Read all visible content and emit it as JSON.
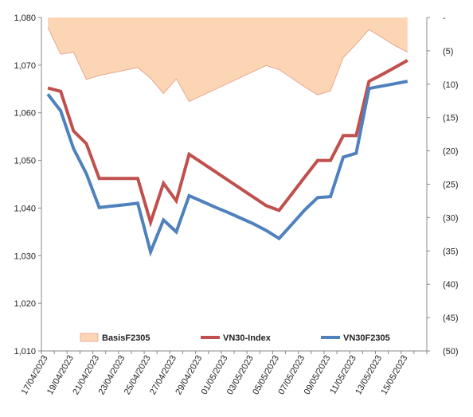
{
  "chart_data": {
    "type": "line",
    "x": [
      "17/04/2023",
      "18/04/2023",
      "19/04/2023",
      "20/04/2023",
      "21/04/2023",
      "22/04/2023",
      "23/04/2023",
      "24/04/2023",
      "25/04/2023",
      "26/04/2023",
      "27/04/2023",
      "28/04/2023",
      "29/04/2023",
      "30/04/2023",
      "01/05/2023",
      "02/05/2023",
      "03/05/2023",
      "04/05/2023",
      "05/05/2023",
      "06/05/2023",
      "07/05/2023",
      "08/05/2023",
      "09/05/2023",
      "10/05/2023",
      "11/05/2023",
      "12/05/2023",
      "13/05/2023",
      "14/05/2023",
      "15/05/2023",
      "16/05/2023"
    ],
    "x_tick_labels": [
      "17/04/2023",
      "19/04/2023",
      "21/04/2023",
      "23/04/2023",
      "25/04/2023",
      "27/04/2023",
      "29/04/2023",
      "01/05/2023",
      "03/05/2023",
      "05/05/2023",
      "07/05/2023",
      "09/05/2023",
      "11/05/2023",
      "13/05/2023",
      "15/05/2023"
    ],
    "series": [
      {
        "name": "BasisF2305",
        "chart": "area",
        "axis": "right",
        "color": "#fcd5b5",
        "edge_color": "#e6a08c",
        "values": [
          -1.5,
          -5.5,
          -5.2,
          -9.3,
          -8.7,
          -8.3,
          -7.9,
          -7.5,
          -9.1,
          -11.4,
          -9.2,
          -12.6,
          -11.7,
          -10.8,
          -9.9,
          -9.0,
          -8.1,
          -7.2,
          -7.8,
          -9.1,
          -10.4,
          -11.6,
          -11.0,
          -6.0,
          -4.0,
          -1.8,
          -3.0,
          -4.2,
          -5.2,
          null
        ]
      },
      {
        "name": "VN30-Index",
        "chart": "line",
        "axis": "left",
        "color": "#c0504d",
        "values": [
          1065.2,
          1064.5,
          1056.2,
          1053.5,
          1046.2,
          1046.2,
          1046.2,
          1046.2,
          1037.0,
          1045.2,
          1041.5,
          1051.3,
          1049.5,
          1047.7,
          1045.9,
          1044.1,
          1042.3,
          1040.5,
          1039.5,
          1043.0,
          1046.5,
          1050.0,
          1050.0,
          1055.2,
          1055.2,
          1066.6,
          1068.0,
          1069.5,
          1071.0,
          null
        ]
      },
      {
        "name": "VN30F2305",
        "chart": "line",
        "axis": "left",
        "color": "#4f81bd",
        "values": [
          1063.9,
          1060.4,
          1052.5,
          1047.2,
          1040.1,
          1040.4,
          1040.7,
          1041.0,
          1030.8,
          1037.5,
          1035.0,
          1042.6,
          1041.4,
          1040.2,
          1039.1,
          1037.9,
          1036.7,
          1035.3,
          1033.6,
          1036.6,
          1039.6,
          1042.2,
          1042.4,
          1050.7,
          1051.5,
          1065.1,
          1065.6,
          1066.1,
          1066.6,
          null
        ]
      }
    ],
    "left_axis": {
      "min": 1010,
      "max": 1080,
      "step": 10,
      "tick_labels": [
        "1,010",
        "1,020",
        "1,030",
        "1,040",
        "1,050",
        "1,060",
        "1,070",
        "1,080"
      ]
    },
    "right_axis": {
      "min": -50,
      "max": 0,
      "step": 5,
      "tick_labels": [
        "(50)",
        "(45)",
        "(40)",
        "(35)",
        "(30)",
        "(25)",
        "(20)",
        "(15)",
        "(10)",
        "(5)",
        "-"
      ]
    },
    "legend": {
      "placement": "bottom-inside",
      "entries": [
        "BasisF2305",
        "VN30-Index",
        "VN30F2305"
      ]
    },
    "grid": false
  }
}
